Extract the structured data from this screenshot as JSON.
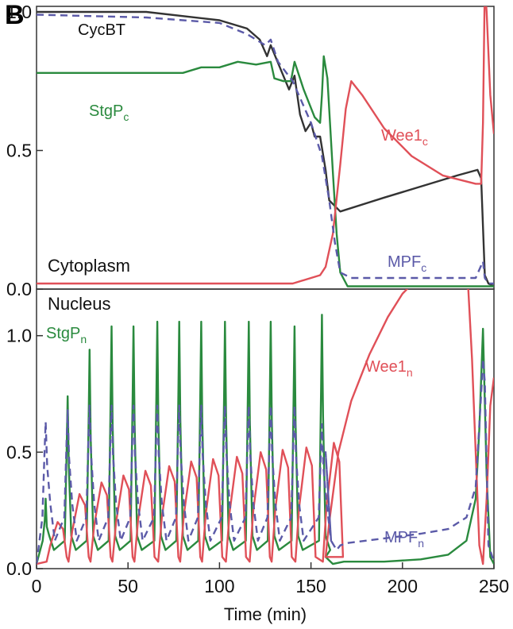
{
  "figure": {
    "panel_label": "B"
  },
  "colors": {
    "cycbt": "#333333",
    "stgp": "#2a8a3e",
    "wee1": "#e05058",
    "mpf": "#5b5aa8"
  },
  "chart_data": [
    {
      "type": "line",
      "region_label": "Cytoplasm",
      "xlim": [
        0,
        250
      ],
      "ylim": [
        0,
        1.02
      ],
      "yticks": [
        0,
        0.5,
        1.0
      ],
      "ytick_labels": [
        "0.0",
        "0.5",
        "1.0"
      ],
      "labels": {
        "cycbt": "CycBT",
        "stgp_base": "StgP",
        "stgp_sub": "c",
        "wee1_base": "Wee1",
        "wee1_sub": "c",
        "mpf_base": "MPF",
        "mpf_sub": "c"
      },
      "series": [
        {
          "key": "cycbt",
          "name": "CycBT",
          "points": [
            [
              0,
              1.0
            ],
            [
              60,
              1.0
            ],
            [
              100,
              0.97
            ],
            [
              115,
              0.94
            ],
            [
              122,
              0.9
            ],
            [
              126,
              0.84
            ],
            [
              128,
              0.88
            ],
            [
              133,
              0.8
            ],
            [
              138,
              0.72
            ],
            [
              141,
              0.77
            ],
            [
              144,
              0.63
            ],
            [
              147,
              0.57
            ],
            [
              150,
              0.6
            ],
            [
              152,
              0.55
            ],
            [
              155,
              0.55
            ],
            [
              158,
              0.43
            ],
            [
              160,
              0.32
            ],
            [
              163,
              0.3
            ],
            [
              166,
              0.28
            ],
            [
              190,
              0.33
            ],
            [
              210,
              0.37
            ],
            [
              230,
              0.41
            ],
            [
              241,
              0.43
            ],
            [
              243,
              0.4
            ],
            [
              245,
              0.05
            ],
            [
              247,
              0.02
            ],
            [
              250,
              0.01
            ]
          ]
        },
        {
          "key": "stgp",
          "name": "StgP_c",
          "points": [
            [
              0,
              0.78
            ],
            [
              60,
              0.78
            ],
            [
              80,
              0.78
            ],
            [
              85,
              0.79
            ],
            [
              90,
              0.8
            ],
            [
              100,
              0.8
            ],
            [
              110,
              0.82
            ],
            [
              120,
              0.81
            ],
            [
              128,
              0.82
            ],
            [
              130,
              0.76
            ],
            [
              135,
              0.75
            ],
            [
              139,
              0.75
            ],
            [
              141,
              0.82
            ],
            [
              146,
              0.72
            ],
            [
              152,
              0.62
            ],
            [
              155,
              0.6
            ],
            [
              156,
              0.7
            ],
            [
              157,
              0.84
            ],
            [
              159,
              0.76
            ],
            [
              162,
              0.42
            ],
            [
              164,
              0.2
            ],
            [
              166,
              0.06
            ],
            [
              170,
              0.01
            ],
            [
              240,
              0.01
            ],
            [
              250,
              0.01
            ]
          ]
        },
        {
          "key": "wee1",
          "name": "Wee1_c",
          "points": [
            [
              0,
              0.02
            ],
            [
              80,
              0.02
            ],
            [
              140,
              0.02
            ],
            [
              155,
              0.05
            ],
            [
              158,
              0.08
            ],
            [
              162,
              0.2
            ],
            [
              166,
              0.45
            ],
            [
              169,
              0.65
            ],
            [
              172,
              0.75
            ],
            [
              178,
              0.7
            ],
            [
              190,
              0.58
            ],
            [
              205,
              0.48
            ],
            [
              222,
              0.41
            ],
            [
              240,
              0.38
            ],
            [
              243,
              0.38
            ],
            [
              244,
              0.6
            ],
            [
              245,
              1.1
            ],
            [
              246,
              1.0
            ],
            [
              248,
              0.7
            ],
            [
              250,
              0.56
            ]
          ]
        },
        {
          "key": "mpf",
          "name": "MPF_c",
          "points": [
            [
              0,
              0.99
            ],
            [
              60,
              0.98
            ],
            [
              100,
              0.96
            ],
            [
              115,
              0.92
            ],
            [
              125,
              0.88
            ],
            [
              128,
              0.9
            ],
            [
              132,
              0.82
            ],
            [
              140,
              0.75
            ],
            [
              150,
              0.6
            ],
            [
              156,
              0.48
            ],
            [
              160,
              0.32
            ],
            [
              163,
              0.17
            ],
            [
              166,
              0.06
            ],
            [
              172,
              0.04
            ],
            [
              200,
              0.04
            ],
            [
              240,
              0.04
            ],
            [
              244,
              0.1
            ],
            [
              245,
              0.04
            ],
            [
              247,
              0.02
            ],
            [
              250,
              0.02
            ]
          ]
        }
      ]
    },
    {
      "type": "line",
      "region_label": "Nucleus",
      "xlabel": "Time (min)",
      "xlim": [
        0,
        250
      ],
      "ylim": [
        0,
        1.2
      ],
      "xticks": [
        0,
        50,
        100,
        150,
        200,
        250
      ],
      "xtick_labels": [
        "0",
        "50",
        "100",
        "150",
        "200",
        "250"
      ],
      "yticks": [
        0,
        0.5,
        1.0
      ],
      "ytick_labels": [
        "0.0",
        "0.5",
        "1.0"
      ],
      "labels": {
        "stgp_base": "StgP",
        "stgp_sub": "n",
        "wee1_base": "Wee1",
        "wee1_sub": "n",
        "mpf_base": "MPF",
        "mpf_sub": "n"
      },
      "oscillation": {
        "peak_times": [
          5,
          17,
          29,
          41,
          53,
          66,
          78,
          90,
          103,
          116,
          128,
          141,
          156
        ],
        "stgp_peaks": [
          0.3,
          0.74,
          0.94,
          1.04,
          1.04,
          1.06,
          1.06,
          1.06,
          1.06,
          1.06,
          1.06,
          1.04,
          1.09
        ],
        "mpf_peaks": [
          0.63,
          0.68,
          0.7,
          0.7,
          0.7,
          0.7,
          0.7,
          0.7,
          0.7,
          0.7,
          0.7,
          0.7,
          0.62
        ],
        "wee1_peaks": [
          0.2,
          0.32,
          0.37,
          0.4,
          0.42,
          0.44,
          0.46,
          0.47,
          0.48,
          0.5,
          0.51,
          0.52,
          0.54
        ]
      },
      "series": [
        {
          "key": "stgp",
          "name": "StgP_n",
          "tail": [
            [
              158,
              0.05
            ],
            [
              162,
              0.02
            ],
            [
              168,
              0.03
            ],
            [
              190,
              0.03
            ],
            [
              210,
              0.04
            ],
            [
              225,
              0.06
            ],
            [
              235,
              0.12
            ],
            [
              240,
              0.3
            ],
            [
              242,
              0.6
            ],
            [
              244,
              1.03
            ],
            [
              246,
              0.4
            ],
            [
              248,
              0.05
            ],
            [
              250,
              0.02
            ]
          ]
        },
        {
          "key": "wee1",
          "name": "Wee1_n",
          "tail": [
            [
              158,
              0.05
            ],
            [
              160,
              0.2
            ],
            [
              165,
              0.5
            ],
            [
              172,
              0.72
            ],
            [
              182,
              0.92
            ],
            [
              192,
              1.08
            ],
            [
              200,
              1.18
            ],
            [
              205,
              1.22
            ],
            [
              232,
              1.22
            ],
            [
              236,
              1.2
            ],
            [
              238,
              0.9
            ],
            [
              240,
              0.5
            ],
            [
              242,
              0.1
            ],
            [
              244,
              0.02
            ],
            [
              246,
              0.3
            ],
            [
              248,
              0.7
            ],
            [
              250,
              0.82
            ]
          ]
        },
        {
          "key": "mpf",
          "name": "MPF_n",
          "tail": [
            [
              158,
              0.5
            ],
            [
              161,
              0.12
            ],
            [
              164,
              0.08
            ],
            [
              166,
              0.1
            ],
            [
              170,
              0.11
            ],
            [
              190,
              0.13
            ],
            [
              210,
              0.15
            ],
            [
              225,
              0.17
            ],
            [
              235,
              0.22
            ],
            [
              240,
              0.35
            ],
            [
              243,
              0.75
            ],
            [
              244,
              0.9
            ],
            [
              245,
              0.8
            ],
            [
              247,
              0.1
            ],
            [
              250,
              0.03
            ]
          ]
        }
      ]
    }
  ]
}
